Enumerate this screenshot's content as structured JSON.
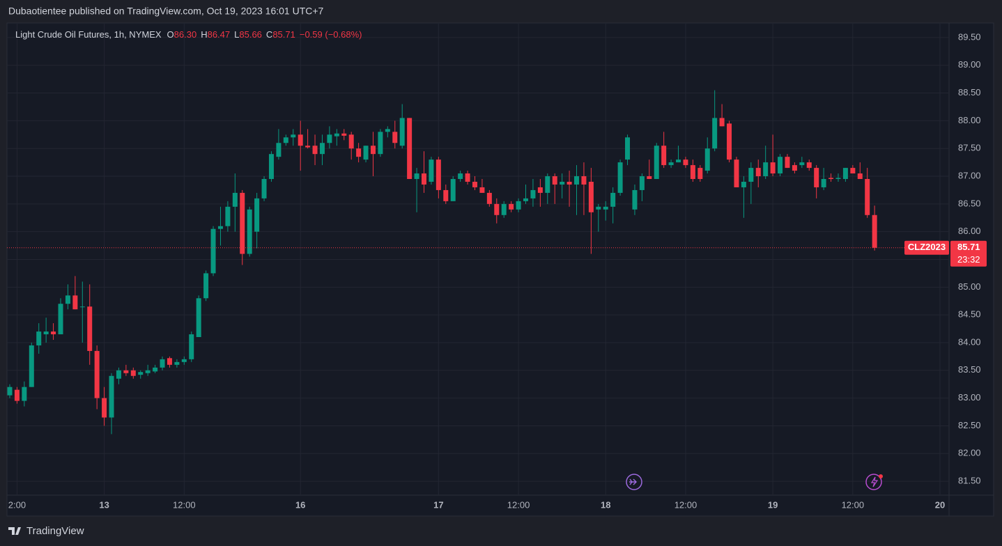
{
  "header": "Dubaotientee published on TradingView.com, Oct 19, 2023 16:01 UTC+7",
  "footer": "TradingView",
  "chart_data": {
    "type": "candlestick",
    "title": "Light Crude Oil Futures, 1h, NYMEX",
    "legend": [
      {
        "label": "O",
        "value": "86.30"
      },
      {
        "label": "H",
        "value": "86.47"
      },
      {
        "label": "L",
        "value": "85.66"
      },
      {
        "label": "C",
        "value": "85.71"
      }
    ],
    "change": "−0.59 (−0.68%)",
    "up_color": "#089981",
    "down_color": "#f23645",
    "grid": true,
    "last_price": {
      "symbol": "CLZ2023",
      "value": 85.71,
      "countdown": "23:32"
    },
    "ylim": [
      81.25,
      89.75
    ],
    "yticks": [
      {
        "value": 81.5,
        "label": "81.50"
      },
      {
        "value": 82,
        "label": "82.00"
      },
      {
        "value": 82.5,
        "label": "82.50"
      },
      {
        "value": 83,
        "label": "83.00"
      },
      {
        "value": 83.5,
        "label": "83.50"
      },
      {
        "value": 84,
        "label": "84.00"
      },
      {
        "value": 84.5,
        "label": "84.50"
      },
      {
        "value": 85,
        "label": "85.00"
      },
      {
        "value": 85.5,
        "label": "85.50"
      },
      {
        "value": 86,
        "label": "86.00"
      },
      {
        "value": 86.5,
        "label": "86.50"
      },
      {
        "value": 87,
        "label": "87.00"
      },
      {
        "value": 87.5,
        "label": "87.50"
      },
      {
        "value": 88,
        "label": "88.00"
      },
      {
        "value": 88.5,
        "label": "88.50"
      },
      {
        "value": 89,
        "label": "89.00"
      },
      {
        "value": 89.5,
        "label": "89.50"
      }
    ],
    "categories": [
      null,
      "2:00",
      null,
      null,
      null,
      null,
      null,
      null,
      null,
      null,
      null,
      null,
      null,
      "13",
      null,
      null,
      null,
      null,
      null,
      null,
      null,
      null,
      null,
      null,
      "12:00",
      null,
      null,
      null,
      null,
      null,
      null,
      null,
      null,
      null,
      null,
      null,
      null,
      null,
      null,
      null,
      "16",
      null,
      null,
      null,
      null,
      null,
      null,
      null,
      null,
      null,
      null,
      null,
      null,
      null,
      null,
      null,
      null,
      null,
      null,
      "17",
      null,
      null,
      null,
      null,
      null,
      null,
      null,
      null,
      null,
      null,
      "12:00",
      null,
      null,
      null,
      null,
      null,
      null,
      null,
      null,
      null,
      null,
      null,
      "18",
      null,
      null,
      null,
      null,
      null,
      null,
      null,
      null,
      null,
      null,
      "12:00",
      null,
      null,
      null,
      null,
      null,
      null,
      null,
      null,
      null,
      null,
      null,
      "19",
      null,
      null,
      null,
      null,
      null,
      null,
      null,
      null,
      null,
      null,
      "12:00",
      null,
      null,
      null,
      null,
      null,
      null,
      null,
      null,
      null,
      null,
      null,
      "20"
    ],
    "open": [
      83.05,
      83.15,
      82.95,
      83.2,
      83.95,
      84.15,
      84.2,
      84.15,
      84.7,
      84.85,
      84.65,
      84.65,
      83.85,
      83.0,
      82.65,
      83.35,
      83.5,
      83.5,
      83.42,
      83.45,
      83.48,
      83.55,
      83.72,
      83.6,
      83.65,
      83.7,
      84.1,
      84.8,
      85.25,
      86.05,
      86.1,
      86.45,
      86.7,
      85.6,
      86.0,
      86.6,
      86.95,
      87.35,
      87.6,
      87.7,
      87.75,
      87.55,
      87.55,
      87.4,
      87.6,
      87.72,
      87.77,
      87.75,
      87.5,
      87.3,
      87.55,
      87.4,
      87.8,
      87.8,
      87.55,
      88.05,
      86.95,
      87.05,
      86.9,
      87.3,
      86.75,
      86.55,
      86.95,
      87.05,
      86.9,
      86.8,
      86.7,
      86.5,
      86.3,
      86.5,
      86.4,
      86.55,
      86.6,
      86.8,
      86.7,
      87.0,
      86.85,
      86.9,
      86.85,
      87.0,
      86.9,
      86.4,
      86.4,
      86.45,
      86.7,
      87.3,
      86.4,
      86.75,
      87.0,
      86.95,
      87.55,
      87.2,
      87.25,
      87.3,
      87.2,
      87.15,
      87.1,
      87.5,
      88.05,
      87.95,
      87.3,
      86.8,
      86.9,
      87.15,
      87.0,
      87.25,
      87.05,
      87.35,
      87.2,
      87.2,
      87.25,
      87.15,
      86.8,
      86.97,
      86.95,
      86.95,
      87.15,
      87.05,
      86.95,
      86.3,
      null,
      null,
      null,
      null,
      null,
      null,
      null,
      null,
      null
    ],
    "high": [
      83.25,
      83.2,
      83.3,
      84.0,
      84.35,
      84.45,
      84.35,
      84.8,
      85.05,
      85.2,
      85.1,
      85.05,
      83.95,
      83.2,
      83.45,
      83.55,
      83.6,
      83.55,
      83.5,
      83.6,
      83.6,
      83.75,
      83.75,
      83.7,
      83.75,
      84.2,
      84.85,
      85.3,
      86.1,
      86.45,
      86.55,
      87.05,
      86.75,
      86.45,
      86.7,
      87.0,
      87.45,
      87.85,
      87.75,
      87.85,
      88.0,
      87.85,
      87.75,
      87.75,
      87.9,
      87.85,
      87.85,
      87.8,
      87.6,
      87.55,
      87.8,
      87.85,
      87.9,
      88.0,
      88.3,
      88.05,
      87.15,
      87.45,
      87.35,
      87.35,
      86.85,
      87.0,
      87.1,
      87.1,
      87.0,
      86.95,
      86.75,
      86.6,
      86.55,
      86.55,
      86.6,
      86.85,
      86.95,
      86.95,
      87.05,
      87.05,
      87.05,
      87.1,
      87.2,
      87.25,
      87.15,
      86.5,
      86.55,
      86.8,
      87.3,
      87.75,
      86.85,
      87.05,
      87.3,
      87.6,
      87.8,
      87.3,
      87.55,
      87.35,
      87.3,
      87.2,
      87.7,
      88.55,
      88.3,
      88.0,
      87.35,
      87.0,
      87.25,
      87.3,
      87.55,
      87.75,
      87.4,
      87.4,
      87.25,
      87.35,
      87.3,
      87.2,
      87.15,
      87.05,
      87.05,
      87.15,
      87.2,
      87.25,
      87.15,
      86.47,
      null,
      null,
      null,
      null,
      null,
      null,
      null,
      null,
      null
    ],
    "low": [
      83.0,
      82.9,
      82.85,
      83.2,
      83.8,
      84.0,
      84.05,
      84.15,
      84.6,
      84.6,
      84.0,
      83.6,
      82.8,
      82.5,
      82.35,
      83.25,
      83.4,
      83.35,
      83.35,
      83.4,
      83.45,
      83.5,
      83.55,
      83.55,
      83.6,
      83.65,
      84.1,
      84.75,
      85.2,
      85.75,
      86.0,
      86.0,
      85.4,
      85.55,
      85.7,
      86.55,
      86.9,
      87.3,
      87.55,
      87.55,
      87.1,
      87.5,
      87.2,
      87.2,
      87.5,
      87.55,
      87.65,
      87.3,
      87.25,
      87.25,
      87.0,
      87.35,
      87.7,
      87.5,
      87.5,
      86.95,
      86.35,
      86.7,
      86.85,
      86.6,
      86.5,
      86.55,
      86.9,
      86.85,
      86.75,
      86.7,
      86.45,
      86.15,
      86.25,
      86.35,
      86.35,
      86.5,
      86.45,
      86.45,
      86.5,
      86.5,
      86.6,
      86.45,
      86.3,
      86.3,
      85.6,
      86.0,
      86.2,
      86.15,
      86.65,
      87.2,
      86.3,
      86.55,
      86.95,
      86.95,
      87.15,
      87.15,
      87.25,
      87.15,
      86.9,
      86.9,
      87.05,
      87.45,
      87.9,
      87.25,
      86.8,
      86.25,
      86.5,
      86.8,
      86.95,
      87.0,
      87.0,
      87.15,
      87.05,
      87.15,
      87.1,
      86.6,
      86.75,
      86.9,
      86.9,
      86.9,
      87.05,
      86.95,
      86.25,
      85.66,
      null,
      null,
      null,
      null,
      null,
      null,
      null,
      null,
      null
    ],
    "close": [
      83.2,
      82.95,
      83.2,
      83.95,
      84.2,
      84.2,
      84.15,
      84.7,
      84.85,
      84.6,
      84.65,
      83.85,
      83.0,
      82.65,
      83.4,
      83.5,
      83.45,
      83.4,
      83.47,
      83.5,
      83.55,
      83.7,
      83.6,
      83.65,
      83.7,
      84.15,
      84.8,
      85.25,
      86.05,
      86.1,
      86.45,
      86.7,
      85.6,
      86.4,
      86.6,
      86.95,
      87.4,
      87.6,
      87.7,
      87.75,
      87.55,
      87.52,
      87.4,
      87.6,
      87.75,
      87.77,
      87.73,
      87.5,
      87.35,
      87.55,
      87.4,
      87.8,
      87.85,
      87.6,
      88.05,
      86.95,
      87.05,
      86.85,
      87.3,
      86.75,
      86.55,
      86.95,
      87.05,
      86.9,
      86.8,
      86.7,
      86.5,
      86.3,
      86.5,
      86.4,
      86.55,
      86.6,
      86.75,
      86.7,
      87.0,
      86.85,
      86.9,
      86.85,
      87.0,
      86.85,
      86.35,
      86.45,
      86.45,
      86.7,
      87.25,
      87.7,
      86.75,
      87.0,
      86.95,
      87.55,
      87.2,
      87.25,
      87.3,
      87.2,
      86.95,
      86.95,
      87.5,
      88.05,
      87.9,
      87.3,
      86.8,
      86.9,
      87.15,
      87.0,
      87.25,
      87.05,
      87.35,
      87.15,
      87.1,
      87.25,
      87.15,
      86.8,
      86.95,
      86.95,
      86.97,
      87.15,
      87.05,
      86.95,
      86.3,
      85.71,
      null,
      null,
      null,
      null,
      null,
      null,
      null,
      null,
      null
    ]
  }
}
